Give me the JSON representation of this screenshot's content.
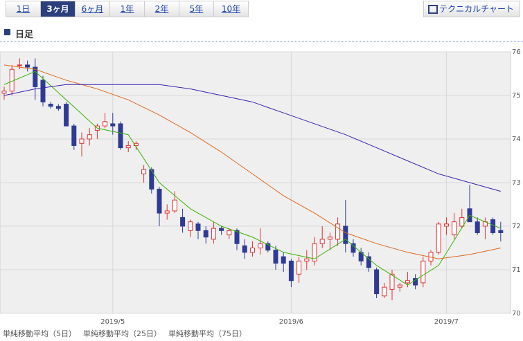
{
  "tabs": [
    "1日",
    "3ヶ月",
    "6ヶ月",
    "1年",
    "2年",
    "5年",
    "10年"
  ],
  "button": "テクニカルチャート",
  "chart_data": {
    "type": "candlestick",
    "title": "日足",
    "categories": [
      null,
      null,
      null,
      null,
      null,
      null,
      null,
      null,
      null,
      null,
      null,
      null,
      null,
      null,
      "2019/5",
      null,
      null,
      null,
      null,
      null,
      null,
      null,
      null,
      null,
      null,
      null,
      null,
      null,
      null,
      null,
      null,
      null,
      null,
      null,
      null,
      null,
      null,
      "2019/6",
      null,
      null,
      null,
      null,
      null,
      null,
      null,
      null,
      null,
      null,
      null,
      null,
      null,
      null,
      null,
      null,
      null,
      null,
      null,
      "2019/7",
      null,
      null,
      null,
      null,
      null,
      null,
      null
    ],
    "open": [
      75.05,
      75.1,
      75.7,
      75.7,
      75.65,
      75.35,
      74.8,
      74.75,
      74.8,
      74.3,
      73.9,
      74.0,
      74.2,
      74.3,
      74.35,
      74.35,
      73.8,
      73.85,
      73.2,
      73.3,
      72.85,
      72.3,
      72.35,
      72.2,
      71.9,
      72.05,
      71.9,
      71.7,
      71.95,
      71.8,
      71.9,
      71.55,
      71.4,
      71.5,
      71.6,
      71.45,
      71.3,
      71.2,
      70.9,
      71.2,
      71.2,
      71.6,
      71.7,
      71.7,
      72.0,
      71.6,
      71.4,
      71.3,
      71.0,
      70.4,
      70.55,
      70.6,
      70.7,
      70.8,
      70.7,
      71.2,
      71.4,
      72.0,
      71.8,
      72.0,
      72.4,
      72.1,
      72.0,
      72.15,
      71.9
    ],
    "high": [
      75.2,
      75.7,
      75.85,
      75.8,
      75.85,
      75.45,
      74.85,
      74.8,
      74.85,
      74.35,
      74.15,
      74.25,
      74.35,
      74.6,
      74.6,
      74.4,
      73.95,
      73.95,
      73.4,
      73.35,
      72.9,
      72.5,
      72.8,
      72.4,
      72.15,
      72.1,
      72.0,
      72.1,
      72.0,
      71.95,
      71.95,
      71.7,
      71.65,
      71.95,
      71.65,
      71.55,
      71.4,
      71.25,
      71.3,
      71.45,
      71.75,
      72.0,
      71.85,
      72.2,
      72.6,
      71.7,
      71.5,
      71.4,
      71.05,
      70.7,
      71.0,
      70.7,
      70.95,
      70.9,
      71.3,
      71.45,
      72.1,
      72.2,
      72.3,
      72.4,
      72.95,
      72.2,
      72.2,
      72.2,
      72.1
    ],
    "low": [
      74.9,
      75.0,
      75.6,
      75.55,
      74.9,
      74.75,
      74.7,
      74.65,
      74.3,
      73.75,
      73.6,
      73.85,
      74.0,
      74.25,
      74.1,
      73.75,
      73.7,
      73.75,
      73.0,
      72.75,
      72.0,
      72.15,
      72.3,
      71.85,
      71.75,
      71.7,
      71.6,
      71.6,
      71.8,
      71.7,
      71.45,
      71.25,
      71.3,
      71.35,
      71.4,
      71.0,
      70.95,
      70.6,
      70.7,
      71.0,
      71.1,
      71.5,
      71.45,
      71.55,
      71.4,
      71.3,
      71.1,
      70.95,
      70.35,
      70.35,
      70.3,
      70.5,
      70.6,
      70.55,
      70.6,
      71.1,
      71.35,
      71.8,
      71.7,
      71.95,
      72.1,
      71.8,
      71.7,
      71.8,
      71.65
    ],
    "close": [
      75.1,
      75.6,
      75.7,
      75.65,
      75.2,
      74.85,
      74.75,
      74.7,
      74.3,
      73.85,
      74.0,
      74.1,
      74.3,
      74.4,
      74.3,
      73.8,
      73.85,
      73.9,
      73.3,
      72.85,
      72.3,
      72.35,
      72.6,
      72.0,
      72.1,
      71.9,
      71.75,
      71.95,
      71.9,
      71.9,
      71.6,
      71.4,
      71.5,
      71.6,
      71.45,
      71.15,
      71.15,
      70.75,
      71.2,
      71.25,
      71.6,
      71.7,
      71.75,
      72.05,
      71.6,
      71.4,
      71.2,
      71.05,
      70.45,
      70.6,
      70.9,
      70.65,
      70.75,
      70.65,
      71.2,
      71.4,
      72.05,
      72.05,
      72.1,
      72.2,
      72.1,
      71.85,
      72.1,
      71.85,
      71.85
    ],
    "up_color": "#e03030",
    "down_color": "#2e3a94",
    "series": [
      {
        "name": "単純移動平均（5日）",
        "color": "#3ab200",
        "x": [
          0,
          4,
          8,
          12,
          16,
          20,
          24,
          28,
          32,
          36,
          40,
          44,
          48,
          52,
          56,
          60,
          64
        ],
        "values": [
          75.25,
          75.55,
          74.9,
          74.25,
          74.1,
          73.0,
          72.4,
          72.0,
          71.75,
          71.4,
          71.25,
          71.7,
          71.1,
          70.65,
          71.1,
          72.25,
          71.95
        ]
      },
      {
        "name": "単純移動平均（25日）",
        "color": "#e0661a",
        "x": [
          0,
          4,
          8,
          12,
          16,
          20,
          24,
          28,
          32,
          36,
          40,
          44,
          48,
          52,
          56,
          60,
          64
        ],
        "values": [
          75.7,
          75.6,
          75.35,
          75.15,
          74.9,
          74.55,
          74.15,
          73.7,
          73.2,
          72.7,
          72.3,
          71.85,
          71.6,
          71.4,
          71.25,
          71.35,
          71.5
        ]
      },
      {
        "name": "単純移動平均（75日）",
        "color": "#3a1fb0",
        "x": [
          0,
          4,
          8,
          12,
          16,
          20,
          24,
          28,
          32,
          36,
          40,
          44,
          48,
          52,
          56,
          60,
          64
        ],
        "values": [
          75.0,
          75.15,
          75.25,
          75.25,
          75.25,
          75.25,
          75.15,
          75.0,
          74.85,
          74.6,
          74.35,
          74.1,
          73.8,
          73.5,
          73.2,
          73.0,
          72.8
        ]
      }
    ],
    "ylim": [
      70,
      76
    ],
    "yticks": [
      70,
      71,
      72,
      73,
      74,
      75,
      76
    ],
    "grid": true
  }
}
